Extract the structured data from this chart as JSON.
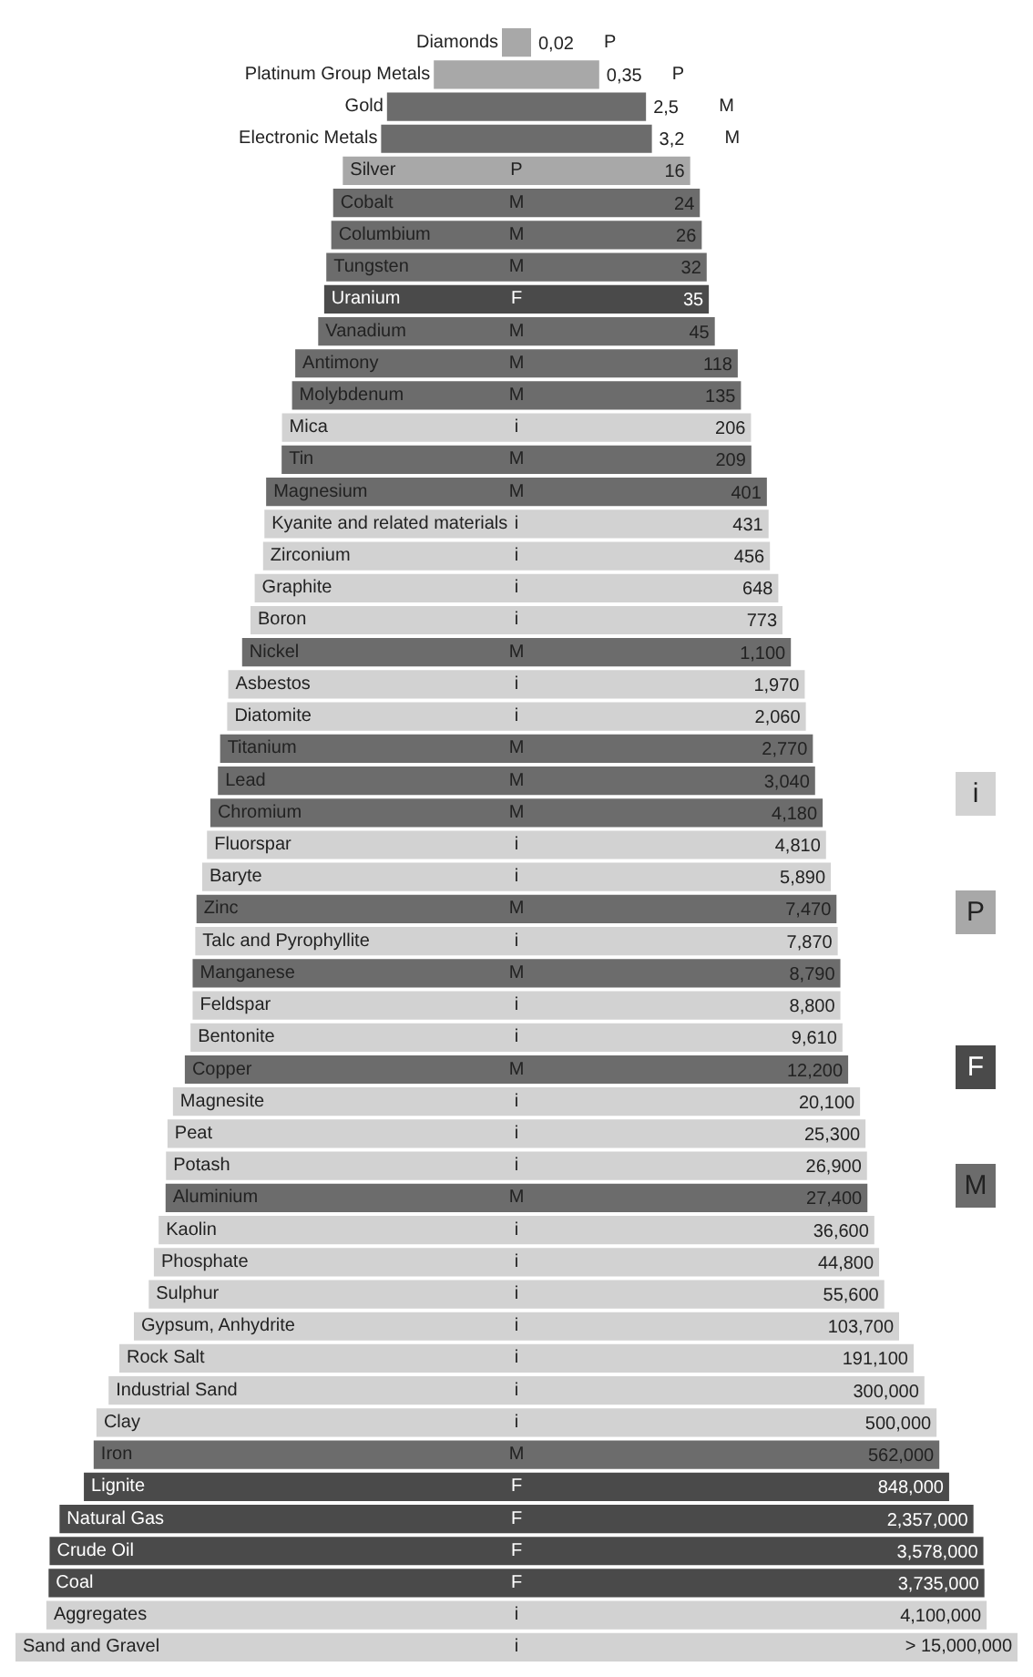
{
  "chart_data": {
    "type": "other",
    "legend": "right",
    "categories": [
      "Diamonds",
      "Platinum Group Metals",
      "Gold",
      "Electronic Metals",
      "Silver",
      "Cobalt",
      "Columbium",
      "Tungsten",
      "Uranium",
      "Vanadium",
      "Antimony",
      "Molybdenum",
      "Mica",
      "Tin",
      "Magnesium",
      "Kyanite and related materials",
      "Zirconium",
      "Graphite",
      "Boron",
      "Nickel",
      "Asbestos",
      "Diatomite",
      "Titanium",
      "Lead",
      "Chromium",
      "Fluorspar",
      "Baryte",
      "Zinc",
      "Talc and Pyrophyllite",
      "Manganese",
      "Feldspar",
      "Bentonite",
      "Copper",
      "Magnesite",
      "Peat",
      "Potash",
      "Aluminium",
      "Kaolin",
      "Phosphate",
      "Sulphur",
      "Gypsum, Anhydrite",
      "Rock Salt",
      "Industrial Sand",
      "Clay",
      "Iron",
      "Lignite",
      "Natural Gas",
      "Crude Oil",
      "Coal",
      "Aggregates",
      "Sand and Gravel"
    ],
    "series": [
      {
        "name": "i",
        "color": "#d2d2d2",
        "values": [
          null,
          null,
          null,
          null,
          null,
          null,
          null,
          null,
          null,
          null,
          null,
          null,
          206,
          null,
          null,
          431,
          456,
          648,
          773,
          null,
          1970,
          2060,
          null,
          null,
          null,
          4810,
          5890,
          null,
          7870,
          null,
          8800,
          9610,
          null,
          20100,
          25300,
          26900,
          null,
          36600,
          44800,
          55600,
          103700,
          191100,
          300000,
          500000,
          null,
          null,
          null,
          null,
          null,
          4100000,
          15000000
        ],
        "value_labels": [
          null,
          null,
          null,
          null,
          null,
          null,
          null,
          null,
          null,
          null,
          null,
          null,
          "206",
          null,
          null,
          "431",
          "456",
          "648",
          "773",
          null,
          "1,970",
          "2,060",
          null,
          null,
          null,
          "4,810",
          "5,890",
          null,
          "7,870",
          null,
          "8,800",
          "9,610",
          null,
          "20,100",
          "25,300",
          "26,900",
          null,
          "36,600",
          "44,800",
          "55,600",
          "103,700",
          "191,100",
          "300,000",
          "500,000",
          null,
          null,
          null,
          null,
          null,
          "4,100,000",
          "> 15,000,000"
        ]
      },
      {
        "name": "P",
        "color": "#a8a8a8",
        "values": [
          0.02,
          0.35,
          null,
          null,
          16,
          null,
          null,
          null,
          null,
          null,
          null,
          null,
          null,
          null,
          null,
          null,
          null,
          null,
          null,
          null,
          null,
          null,
          null,
          null,
          null,
          null,
          null,
          null,
          null,
          null,
          null,
          null,
          null,
          null,
          null,
          null,
          null,
          null,
          null,
          null,
          null,
          null,
          null,
          null,
          null,
          null,
          null,
          null,
          null,
          null,
          null
        ],
        "value_labels": [
          "0,02",
          "0,35",
          null,
          null,
          "16",
          null,
          null,
          null,
          null,
          null,
          null,
          null,
          null,
          null,
          null,
          null,
          null,
          null,
          null,
          null,
          null,
          null,
          null,
          null,
          null,
          null,
          null,
          null,
          null,
          null,
          null,
          null,
          null,
          null,
          null,
          null,
          null,
          null,
          null,
          null,
          null,
          null,
          null,
          null,
          null,
          null,
          null,
          null,
          null,
          null,
          null
        ]
      },
      {
        "name": "F",
        "color": "#4a4a4a",
        "values": [
          null,
          null,
          null,
          null,
          null,
          null,
          null,
          null,
          35,
          null,
          null,
          null,
          null,
          null,
          null,
          null,
          null,
          null,
          null,
          null,
          null,
          null,
          null,
          null,
          null,
          null,
          null,
          null,
          null,
          null,
          null,
          null,
          null,
          null,
          null,
          null,
          null,
          null,
          null,
          null,
          null,
          null,
          null,
          null,
          null,
          848000,
          2357000,
          3578000,
          3735000,
          null,
          null
        ],
        "value_labels": [
          null,
          null,
          null,
          null,
          null,
          null,
          null,
          null,
          "35",
          null,
          null,
          null,
          null,
          null,
          null,
          null,
          null,
          null,
          null,
          null,
          null,
          null,
          null,
          null,
          null,
          null,
          null,
          null,
          null,
          null,
          null,
          null,
          null,
          null,
          null,
          null,
          null,
          null,
          null,
          null,
          null,
          null,
          null,
          null,
          null,
          "848,000",
          "2,357,000",
          "3,578,000",
          "3,735,000",
          null,
          null
        ]
      },
      {
        "name": "M",
        "color": "#6c6c6c",
        "values": [
          null,
          null,
          2.5,
          3.2,
          null,
          24,
          26,
          32,
          null,
          45,
          118,
          135,
          null,
          209,
          401,
          null,
          null,
          null,
          null,
          1100,
          null,
          null,
          2770,
          3040,
          4180,
          null,
          null,
          7470,
          null,
          8790,
          null,
          null,
          12200,
          null,
          null,
          null,
          27400,
          null,
          null,
          null,
          null,
          null,
          null,
          null,
          562000,
          null,
          null,
          null,
          null,
          null,
          null
        ],
        "value_labels": [
          null,
          null,
          "2,5",
          "3,2",
          null,
          "24",
          "26",
          "32",
          null,
          "45",
          "118",
          "135",
          null,
          "209",
          "401",
          null,
          null,
          null,
          null,
          "1,100",
          null,
          null,
          "2,770",
          "3,040",
          "4,180",
          null,
          null,
          "7,470",
          null,
          "8,790",
          null,
          null,
          "12,200",
          null,
          null,
          null,
          "27,400",
          null,
          null,
          null,
          null,
          null,
          null,
          null,
          "562,000",
          null,
          null,
          null,
          null,
          null,
          null
        ]
      }
    ]
  }
}
